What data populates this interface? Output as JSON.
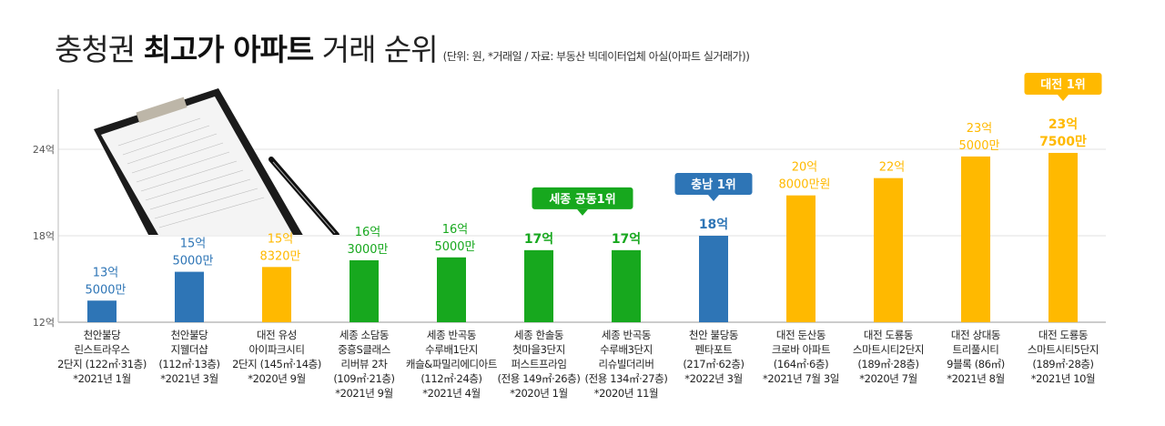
{
  "header": {
    "title_part1": "충청권 ",
    "title_bold": "최고가 아파트",
    "title_part2": " 거래 순위",
    "subtitle": "(단위: 원, *거래일 / 자료: 부동산 빅데이터업체 아실(아파트 실거래가))"
  },
  "colors": {
    "chungnam": "#2e75b6",
    "daejeon": "#ffb900",
    "sejong": "#17a81e",
    "grid": "#e2e2e2",
    "axis": "#bbbbbb"
  },
  "chart_data": {
    "type": "bar",
    "title": "충청권 최고가 아파트 거래 순위",
    "ylim": [
      12,
      24
    ],
    "yticks": [
      {
        "value": 12,
        "label": "12억"
      },
      {
        "value": 18,
        "label": "18억"
      },
      {
        "value": 24,
        "label": "24억"
      }
    ],
    "grid": true,
    "categories": [
      [
        "천안불당",
        "린스트라우스",
        "2단지 (122㎡·31층)",
        "*2021년 1월"
      ],
      [
        "천안불당",
        "지웰더샵",
        "(112㎡·13층)",
        "*2021년 3월"
      ],
      [
        "대전 유성",
        "아이파크시티",
        "2단지 (145㎡·14층)",
        "*2020년 9월"
      ],
      [
        "세종 소담동",
        "중흥S클래스",
        "리버뷰 2차",
        "(109㎡·21층)",
        "*2021년 9월"
      ],
      [
        "세종 반곡동",
        "수루배1단지",
        "캐슬&파밀리에디아트",
        "(112㎡·24층)",
        "*2021년 4월"
      ],
      [
        "세종 한솔동",
        "첫마을3단지",
        "퍼스트프라임",
        "(전용 149㎡·26층)",
        "*2020년 1월"
      ],
      [
        "세종 반곡동",
        "수루배3단지",
        "리슈빌더리버",
        "(전용 134㎡·27층)",
        "*2020년 11월"
      ],
      [
        "천안 불당동",
        "펜타포트",
        "(217㎡·62층)",
        "*2022년 3월"
      ],
      [
        "대전 둔산동",
        "크로바 아파트",
        "(164㎡·6층)",
        "*2021년 7월 3일"
      ],
      [
        "대전 도룡동",
        "스마트시티2단지",
        "(189㎡·28층)",
        "*2020년 7월"
      ],
      [
        "대전 상대동",
        "트리풀시티",
        "9블록 (86㎡)",
        "*2021년 8월"
      ],
      [
        "대전 도룡동",
        "스마트시티5단지",
        "(189㎡·28층)",
        "*2021년 10월"
      ]
    ],
    "values": [
      13.5,
      15.5,
      15.832,
      16.3,
      16.5,
      17,
      17,
      18,
      20.8,
      22,
      23.5,
      23.75
    ],
    "regions": [
      "chungnam",
      "chungnam",
      "daejeon",
      "sejong",
      "sejong",
      "sejong",
      "sejong",
      "chungnam",
      "daejeon",
      "daejeon",
      "daejeon",
      "daejeon"
    ],
    "data_labels": [
      [
        "13억",
        "5000만"
      ],
      [
        "15억",
        "5000만"
      ],
      [
        "15억",
        "8320만"
      ],
      [
        "16억",
        "3000만"
      ],
      [
        "16억",
        "5000만"
      ],
      [
        "17억"
      ],
      [
        "17억"
      ],
      [
        "18억"
      ],
      [
        "20억",
        "8000만원"
      ],
      [
        "22억"
      ],
      [
        "23억",
        "5000만"
      ],
      [
        "23억",
        "7500만"
      ]
    ],
    "bold_labels": [
      false,
      false,
      false,
      false,
      false,
      true,
      true,
      true,
      false,
      false,
      false,
      true
    ],
    "annotations": [
      {
        "text": "세종 공동1위",
        "bars": [
          5,
          6
        ],
        "region": "sejong"
      },
      {
        "text": "충남 1위",
        "bars": [
          7
        ],
        "region": "chungnam"
      },
      {
        "text": "대전 1위",
        "bars": [
          11
        ],
        "region": "daejeon"
      }
    ]
  }
}
